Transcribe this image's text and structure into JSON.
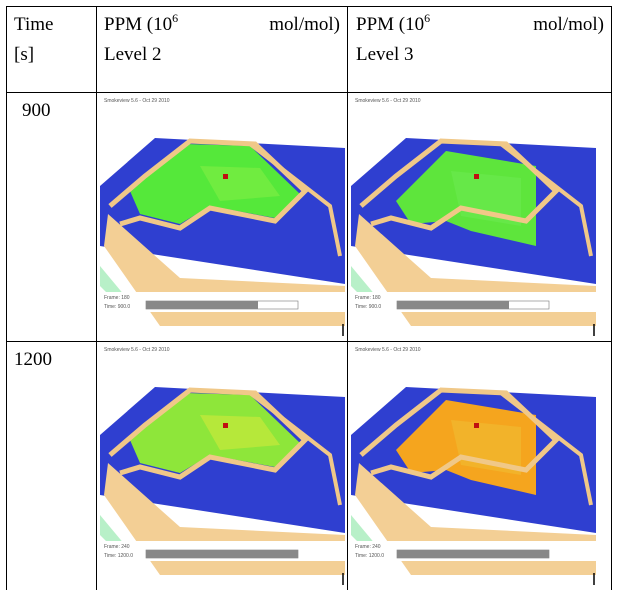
{
  "table": {
    "headers": [
      {
        "line1": "Time",
        "line2": "[s]"
      },
      {
        "prefix": "PPM (10",
        "exp": "6",
        "suffix": "mol/mol)",
        "line2": "Level 2"
      },
      {
        "prefix": "PPM (10",
        "exp": "6",
        "suffix": "mol/mol)",
        "line2": "Level 3"
      }
    ],
    "rows": [
      {
        "time": "900",
        "images": [
          {
            "caption": "Smokeview 5.6 - Oct 29 2010",
            "frame": "Frame: 180",
            "time": "Time: 900.0"
          },
          {
            "caption": "Smokeview 5.6 - Oct 29 2010",
            "frame": "Frame: 180",
            "time": "Time: 900.0"
          }
        ]
      },
      {
        "time": "1200",
        "images": [
          {
            "caption": "Smokeview 5.6 - Oct 29 2010",
            "frame": "Frame: 240",
            "time": "Time: 1200.0"
          },
          {
            "caption": "Smokeview 5.6 - Oct 29 2010",
            "frame": "Frame: 240",
            "time": "Time: 1200.0"
          }
        ]
      }
    ]
  }
}
